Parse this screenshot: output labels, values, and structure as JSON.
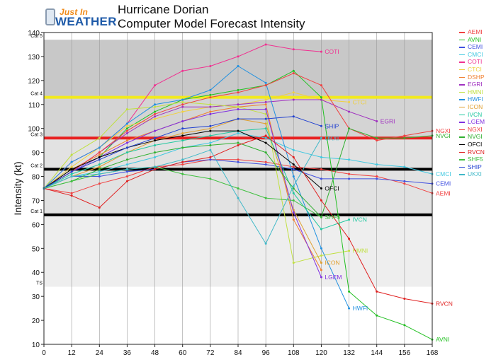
{
  "header": {
    "logo_top": "Just In",
    "logo_bottom": "WEATHER"
  },
  "chart_data": {
    "type": "line",
    "title": "Hurricane Dorian",
    "subtitle": "Computer Model Forecast Intensity",
    "xlabel": "",
    "ylabel": "Intensity (kt)",
    "xlim": [
      0,
      168
    ],
    "ylim": [
      10,
      140
    ],
    "xticks": [
      0,
      12,
      24,
      36,
      48,
      60,
      72,
      84,
      96,
      108,
      120,
      132,
      144,
      156,
      168
    ],
    "yticks": [
      10,
      20,
      30,
      40,
      50,
      60,
      70,
      80,
      90,
      100,
      110,
      120,
      130,
      140
    ],
    "grid": "vertical",
    "legend_position": "right",
    "bands": [
      {
        "from": 34,
        "to": 64,
        "color": "#eeeeee"
      },
      {
        "from": 64,
        "to": 96,
        "color": "#e2e2e2"
      },
      {
        "from": 96,
        "to": 113,
        "color": "#d4d4d4"
      },
      {
        "from": 113,
        "to": 137,
        "color": "#c8c8c8"
      }
    ],
    "thresholds": [
      {
        "label": "TS",
        "value": 34,
        "color": "#bbbbbb",
        "width": 0
      },
      {
        "label": "Cat 1",
        "value": 64,
        "color": "#000000",
        "width": 4
      },
      {
        "label": "Cat 2",
        "value": 83,
        "color": "#000000",
        "width": 4
      },
      {
        "label": "Cat 3",
        "value": 96,
        "color": "#e82020",
        "width": 4
      },
      {
        "label": "Cat 4",
        "value": 113,
        "color": "#f2ea1c",
        "width": 4
      },
      {
        "label": "Cat 5",
        "value": 137,
        "color": "#bbbbbb",
        "width": 0
      }
    ],
    "series": [
      {
        "name": "AEMI",
        "color": "#f04040",
        "label": "AEMI",
        "x": [
          0,
          12,
          24,
          36,
          48,
          60,
          72,
          84,
          96,
          108,
          120,
          132,
          144,
          156,
          168
        ],
        "y": [
          75,
          73,
          77,
          80,
          84,
          85,
          87,
          87,
          86,
          84,
          83,
          81,
          80,
          77,
          73
        ]
      },
      {
        "name": "AVNI",
        "color": "#22c022",
        "label": "AVNI",
        "x": [
          0,
          12,
          24,
          36,
          48,
          60,
          72,
          84,
          96,
          108,
          120,
          132,
          144,
          156,
          168
        ],
        "y": [
          75,
          83,
          88,
          100,
          107,
          112,
          114,
          116,
          118,
          124,
          113,
          32,
          22,
          18,
          12
        ]
      },
      {
        "name": "CEMI",
        "color": "#4050e0",
        "label": "CEMI",
        "x": [
          0,
          12,
          24,
          36,
          48,
          60,
          72,
          84,
          96,
          108,
          120,
          132,
          144,
          156,
          168
        ],
        "y": [
          75,
          80,
          80,
          82,
          83,
          86,
          87,
          86,
          85,
          83,
          79,
          79,
          79,
          78,
          77
        ]
      },
      {
        "name": "CMCI",
        "color": "#40c8e0",
        "label": "CMCI",
        "x": [
          0,
          12,
          24,
          36,
          48,
          60,
          72,
          84,
          96,
          108,
          120,
          132,
          144,
          156,
          168
        ],
        "y": [
          75,
          80,
          82,
          85,
          88,
          92,
          94,
          98,
          96,
          91,
          88,
          87,
          85,
          84,
          81
        ]
      },
      {
        "name": "COTI",
        "color": "#f03090",
        "label": "COTI",
        "x": [
          0,
          12,
          24,
          36,
          48,
          60,
          72,
          84,
          96,
          108,
          120
        ],
        "y": [
          75,
          86,
          92,
          102,
          118,
          124,
          126,
          130,
          135,
          133,
          132
        ]
      },
      {
        "name": "CTCI",
        "color": "#f0d040",
        "label": "CTCI",
        "x": [
          0,
          12,
          24,
          36,
          48,
          60,
          72,
          84,
          96,
          108,
          120,
          132
        ],
        "y": [
          75,
          84,
          92,
          101,
          104,
          107,
          109,
          110,
          112,
          115,
          112,
          111
        ]
      },
      {
        "name": "DSHP",
        "color": "#f08030",
        "label": "",
        "x": [
          0,
          12,
          24,
          36,
          48,
          60,
          72,
          84,
          96,
          108,
          120
        ],
        "y": [
          75,
          83,
          89,
          95,
          99,
          103,
          107,
          109,
          110,
          62,
          41
        ]
      },
      {
        "name": "EGRI",
        "color": "#a030c0",
        "label": "EGRI",
        "x": [
          0,
          12,
          24,
          36,
          48,
          60,
          72,
          84,
          96,
          108,
          120,
          132,
          144
        ],
        "y": [
          75,
          82,
          90,
          98,
          105,
          109,
          109,
          110,
          111,
          112,
          112,
          107,
          103
        ]
      },
      {
        "name": "HMNI",
        "color": "#c0e040",
        "label": "HMNI",
        "x": [
          0,
          12,
          24,
          36,
          48,
          60,
          72,
          84,
          96,
          108,
          120,
          132
        ],
        "y": [
          75,
          89,
          96,
          108,
          109,
          111,
          110,
          109,
          106,
          44,
          47,
          49
        ]
      },
      {
        "name": "HWFI",
        "color": "#2090e0",
        "label": "HWFI",
        "x": [
          0,
          12,
          24,
          36,
          48,
          60,
          72,
          84,
          96,
          108,
          120,
          132
        ],
        "y": [
          75,
          86,
          92,
          102,
          110,
          112,
          116,
          126,
          119,
          80,
          50,
          25
        ]
      },
      {
        "name": "ICON",
        "color": "#e0a030",
        "label": "ICON",
        "x": [
          0,
          12,
          24,
          36,
          48,
          60,
          72,
          84,
          96,
          108,
          120
        ],
        "y": [
          75,
          80,
          84,
          90,
          95,
          98,
          100,
          104,
          102,
          66,
          44
        ]
      },
      {
        "name": "IVCN",
        "color": "#20c8a0",
        "label": "IVCN",
        "x": [
          0,
          12,
          24,
          36,
          48,
          60,
          72,
          84,
          96,
          108,
          120,
          132
        ],
        "y": [
          75,
          81,
          85,
          90,
          93,
          95,
          97,
          99,
          100,
          73,
          58,
          62
        ]
      },
      {
        "name": "LGEM",
        "color": "#8030e0",
        "label": "LGEM",
        "x": [
          0,
          12,
          24,
          36,
          48,
          60,
          72,
          84,
          96,
          108,
          120
        ],
        "y": [
          75,
          82,
          88,
          94,
          99,
          103,
          106,
          108,
          108,
          65,
          38
        ]
      },
      {
        "name": "NGXI",
        "color": "#f04040",
        "label": "NGXI",
        "x": [
          0,
          12,
          24,
          36,
          48,
          60,
          72,
          84,
          96,
          108,
          120,
          132,
          144,
          156,
          168
        ],
        "y": [
          75,
          82,
          90,
          99,
          106,
          110,
          113,
          115,
          118,
          123,
          118,
          100,
          95,
          97,
          99
        ]
      },
      {
        "name": "NVGI",
        "color": "#30b030",
        "label": "NVGI",
        "x": [
          0,
          12,
          24,
          36,
          48,
          60,
          72,
          84,
          96,
          108,
          120,
          132,
          144,
          156,
          168
        ],
        "y": [
          75,
          78,
          83,
          87,
          90,
          92,
          93,
          94,
          90,
          75,
          63,
          100,
          96,
          96,
          97
        ]
      },
      {
        "name": "OFCI",
        "color": "#000000",
        "label": "OFCI",
        "x": [
          0,
          12,
          24,
          36,
          48,
          60,
          72,
          84,
          96,
          108,
          120
        ],
        "y": [
          75,
          83,
          88,
          92,
          95,
          97,
          99,
          99,
          94,
          85,
          75
        ]
      },
      {
        "name": "RVCN",
        "color": "#e02020",
        "label": "RVCN",
        "x": [
          0,
          12,
          24,
          36,
          48,
          60,
          72,
          84,
          96,
          108,
          120,
          132,
          144,
          156,
          168
        ],
        "y": [
          75,
          72,
          67,
          78,
          83,
          86,
          88,
          93,
          97,
          88,
          70,
          54,
          32,
          29,
          27
        ]
      },
      {
        "name": "SHF5",
        "color": "#40c040",
        "label": "SHF5",
        "x": [
          0,
          12,
          24,
          36,
          48,
          60,
          72,
          84,
          96,
          108,
          120
        ],
        "y": [
          75,
          78,
          81,
          83,
          84,
          81,
          79,
          75,
          71,
          70,
          63
        ]
      },
      {
        "name": "SHIP",
        "color": "#2040d0",
        "label": "SHIP",
        "x": [
          0,
          12,
          24,
          36,
          48,
          60,
          72,
          84,
          96,
          108,
          120
        ],
        "y": [
          75,
          82,
          87,
          92,
          96,
          100,
          101,
          104,
          104,
          105,
          101
        ]
      },
      {
        "name": "UKXI",
        "color": "#40b8c8",
        "label": "UKXI",
        "x": [
          0,
          12,
          24,
          36,
          48,
          60,
          72,
          84,
          96,
          108,
          120
        ],
        "y": [
          75,
          80,
          81,
          83,
          84,
          87,
          91,
          71,
          52,
          76,
          96
        ]
      }
    ]
  }
}
